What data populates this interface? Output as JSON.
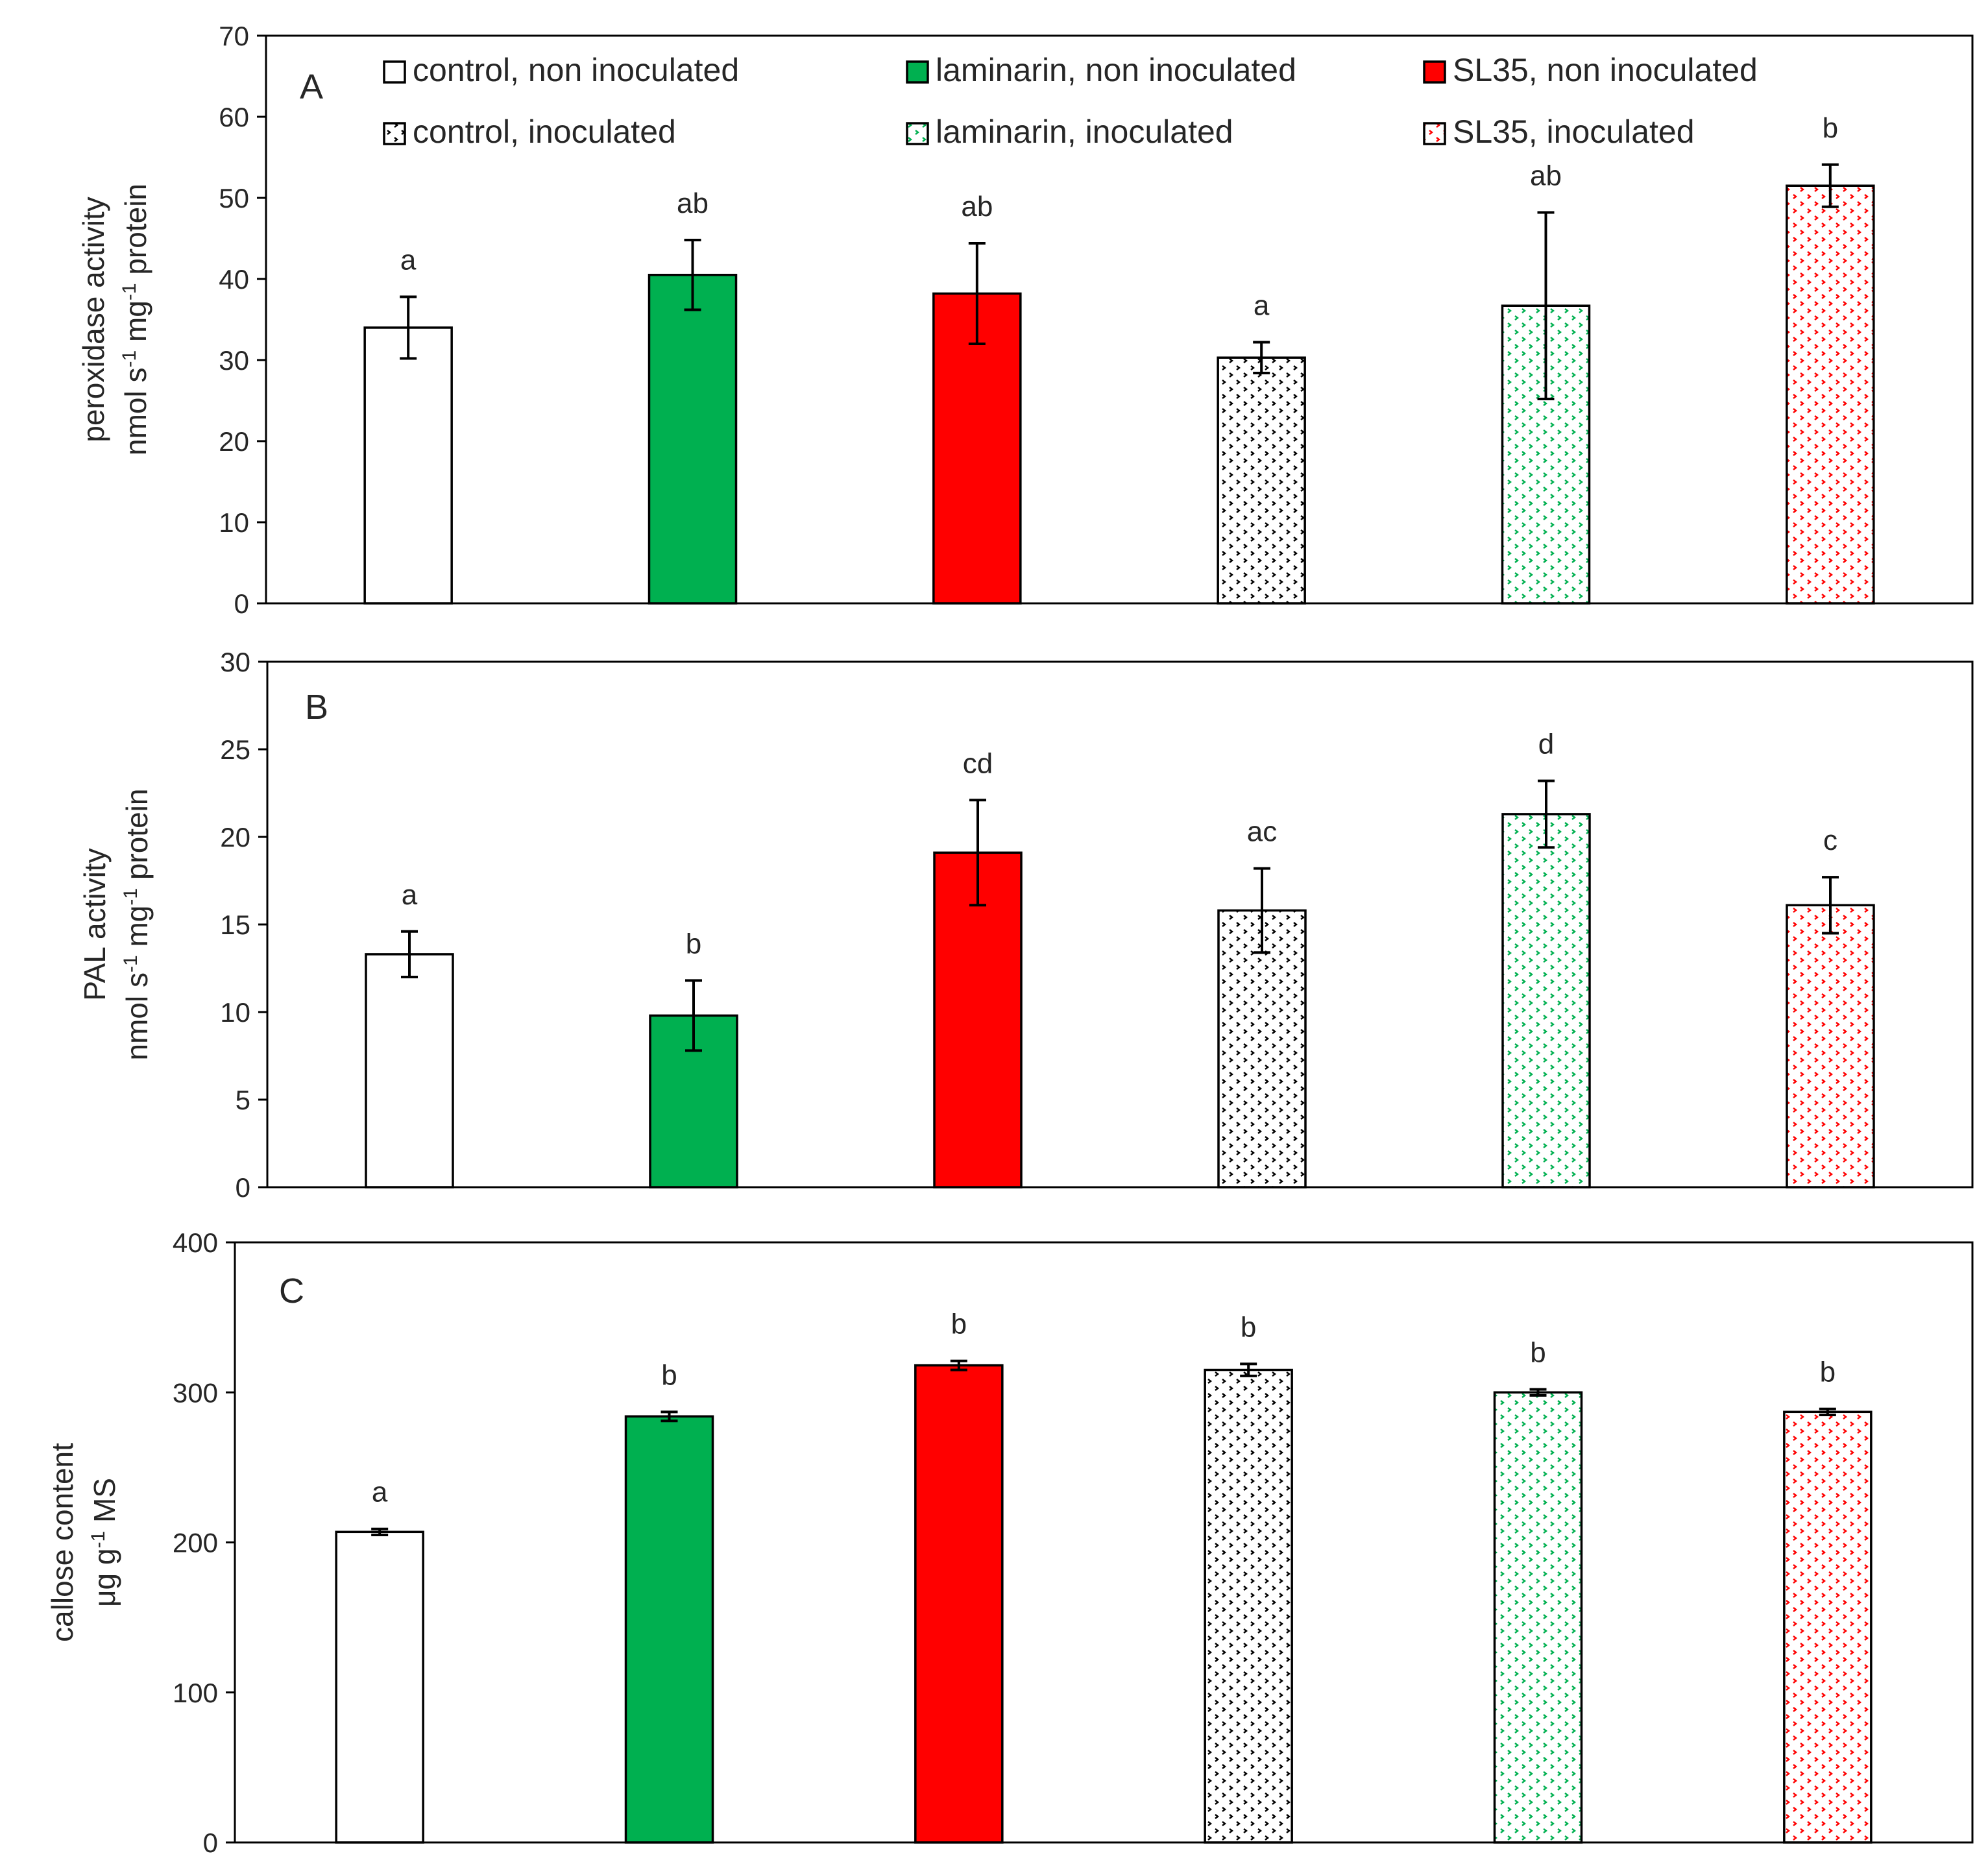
{
  "colors": {
    "white": "#ffffff",
    "green": "#00b050",
    "red": "#ff0000",
    "black": "#000000"
  },
  "legend": [
    {
      "label": "control, non inoculated",
      "color": "white",
      "pattern": "solid"
    },
    {
      "label": "laminarin, non inoculated",
      "color": "green",
      "pattern": "solid"
    },
    {
      "label": "SL35, non inoculated",
      "color": "red",
      "pattern": "solid"
    },
    {
      "label": "control, inoculated",
      "color": "black",
      "pattern": "dotted"
    },
    {
      "label": "laminarin, inoculated",
      "color": "green",
      "pattern": "dotted"
    },
    {
      "label": "SL35, inoculated",
      "color": "red",
      "pattern": "dotted"
    }
  ],
  "chart_data": [
    {
      "type": "bar",
      "panel": "A",
      "ylabel_line1": "peroxidase activity",
      "ylabel_line2": [
        {
          "t": "nmol s"
        },
        {
          "t": "-1",
          "sup": true
        },
        {
          "t": " mg"
        },
        {
          "t": "-1",
          "sup": true
        },
        {
          "t": " protein"
        }
      ],
      "ylim": [
        0,
        70
      ],
      "yticks": [
        0,
        10,
        20,
        30,
        40,
        50,
        60,
        70
      ],
      "categories": [
        "control, non inoculated",
        "laminarin, non inoculated",
        "SL35, non inoculated",
        "control, inoculated",
        "laminarin, inoculated",
        "SL35, inoculated"
      ],
      "values": [
        34,
        40.5,
        38.2,
        30.3,
        36.7,
        51.5
      ],
      "errors": [
        3.8,
        4.3,
        6.2,
        1.9,
        11.5,
        2.6
      ],
      "significance": [
        "a",
        "ab",
        "ab",
        "a",
        "ab",
        "b"
      ]
    },
    {
      "type": "bar",
      "panel": "B",
      "ylabel_line1": "PAL activity",
      "ylabel_line2": [
        {
          "t": "nmol s"
        },
        {
          "t": "-1",
          "sup": true
        },
        {
          "t": " mg"
        },
        {
          "t": "-1",
          "sup": true
        },
        {
          "t": " protein"
        }
      ],
      "ylim": [
        0,
        30
      ],
      "yticks": [
        0,
        5,
        10,
        15,
        20,
        25,
        30
      ],
      "categories": [
        "control, non inoculated",
        "laminarin, non inoculated",
        "SL35, non inoculated",
        "control, inoculated",
        "laminarin, inoculated",
        "SL35, inoculated"
      ],
      "values": [
        13.3,
        9.8,
        19.1,
        15.8,
        21.3,
        16.1
      ],
      "errors": [
        1.3,
        2.0,
        3.0,
        2.4,
        1.9,
        1.6
      ],
      "significance": [
        "a",
        "b",
        "cd",
        "ac",
        "d",
        "c"
      ]
    },
    {
      "type": "bar",
      "panel": "C",
      "ylabel_line1": "callose content",
      "ylabel_line2": [
        {
          "t": "μg g"
        },
        {
          "t": "-1",
          "sup": true
        },
        {
          "t": " MS"
        }
      ],
      "ylim": [
        0,
        400
      ],
      "yticks": [
        0,
        100,
        200,
        300,
        400
      ],
      "categories": [
        "control, non inoculated",
        "laminarin, non inoculated",
        "SL35, non inoculated",
        "control, inoculated",
        "laminarin, inoculated",
        "SL35, inoculated"
      ],
      "values": [
        207,
        284,
        318,
        315,
        300,
        287
      ],
      "errors": [
        2,
        3,
        3,
        4,
        2,
        2
      ],
      "significance": [
        "a",
        "b",
        "b",
        "b",
        "b",
        "b"
      ]
    }
  ]
}
